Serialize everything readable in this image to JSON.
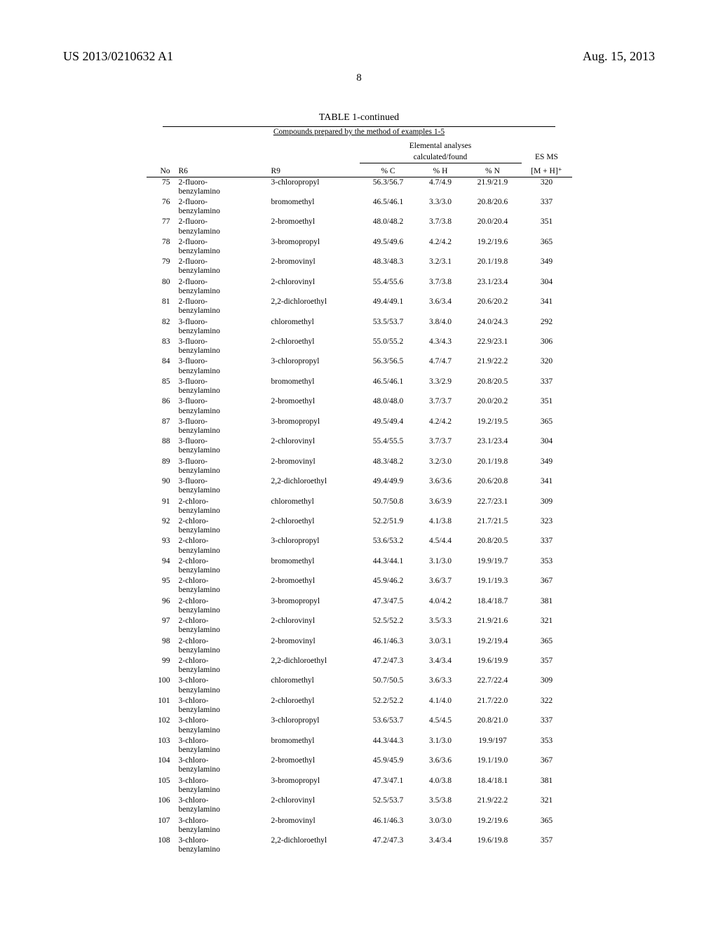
{
  "header": {
    "left": "US 2013/0210632 A1",
    "right": "Aug. 15, 2013"
  },
  "page_number": "8",
  "table": {
    "title": "TABLE 1-continued",
    "subtitle": "Compounds prepared by the method of examples 1-5",
    "group_header_elem": "Elemental analyses",
    "group_header_calc": "calculated/found",
    "group_header_ms": "ES MS",
    "columns": {
      "no": "No",
      "r6": "R6",
      "r9": "R9",
      "pc": "% C",
      "ph": "% H",
      "pn": "% N",
      "ms": "[M + H]⁺"
    },
    "rows": [
      {
        "no": "75",
        "r6": "2-fluoro-\nbenzylamino",
        "r9": "3-chloropropyl",
        "pc": "56.3/56.7",
        "ph": "4.7/4.9",
        "pn": "21.9/21.9",
        "ms": "320"
      },
      {
        "no": "76",
        "r6": "2-fluoro-\nbenzylamino",
        "r9": "bromomethyl",
        "pc": "46.5/46.1",
        "ph": "3.3/3.0",
        "pn": "20.8/20.6",
        "ms": "337"
      },
      {
        "no": "77",
        "r6": "2-fluoro-\nbenzylamino",
        "r9": "2-bromoethyl",
        "pc": "48.0/48.2",
        "ph": "3.7/3.8",
        "pn": "20.0/20.4",
        "ms": "351"
      },
      {
        "no": "78",
        "r6": "2-fluoro-\nbenzylamino",
        "r9": "3-bromopropyl",
        "pc": "49.5/49.6",
        "ph": "4.2/4.2",
        "pn": "19.2/19.6",
        "ms": "365"
      },
      {
        "no": "79",
        "r6": "2-fluoro-\nbenzylamino",
        "r9": "2-bromovinyl",
        "pc": "48.3/48.3",
        "ph": "3.2/3.1",
        "pn": "20.1/19.8",
        "ms": "349"
      },
      {
        "no": "80",
        "r6": "2-fluoro-\nbenzylamino",
        "r9": "2-chlorovinyl",
        "pc": "55.4/55.6",
        "ph": "3.7/3.8",
        "pn": "23.1/23.4",
        "ms": "304"
      },
      {
        "no": "81",
        "r6": "2-fluoro-\nbenzylamino",
        "r9": "2,2-dichloroethyl",
        "pc": "49.4/49.1",
        "ph": "3.6/3.4",
        "pn": "20.6/20.2",
        "ms": "341"
      },
      {
        "no": "82",
        "r6": "3-fluoro-\nbenzylamino",
        "r9": "chloromethyl",
        "pc": "53.5/53.7",
        "ph": "3.8/4.0",
        "pn": "24.0/24.3",
        "ms": "292"
      },
      {
        "no": "83",
        "r6": "3-fluoro-\nbenzylamino",
        "r9": "2-chloroethyl",
        "pc": "55.0/55.2",
        "ph": "4.3/4.3",
        "pn": "22.9/23.1",
        "ms": "306"
      },
      {
        "no": "84",
        "r6": "3-fluoro-\nbenzylamino",
        "r9": "3-chloropropyl",
        "pc": "56.3/56.5",
        "ph": "4.7/4.7",
        "pn": "21.9/22.2",
        "ms": "320"
      },
      {
        "no": "85",
        "r6": "3-fluoro-\nbenzylamino",
        "r9": "bromomethyl",
        "pc": "46.5/46.1",
        "ph": "3.3/2.9",
        "pn": "20.8/20.5",
        "ms": "337"
      },
      {
        "no": "86",
        "r6": "3-fluoro-\nbenzylamino",
        "r9": "2-bromoethyl",
        "pc": "48.0/48.0",
        "ph": "3.7/3.7",
        "pn": "20.0/20.2",
        "ms": "351"
      },
      {
        "no": "87",
        "r6": "3-fluoro-\nbenzylamino",
        "r9": "3-bromopropyl",
        "pc": "49.5/49.4",
        "ph": "4.2/4.2",
        "pn": "19.2/19.5",
        "ms": "365"
      },
      {
        "no": "88",
        "r6": "3-fluoro-\nbenzylamino",
        "r9": "2-chlorovinyl",
        "pc": "55.4/55.5",
        "ph": "3.7/3.7",
        "pn": "23.1/23.4",
        "ms": "304"
      },
      {
        "no": "89",
        "r6": "3-fluoro-\nbenzylamino",
        "r9": "2-bromovinyl",
        "pc": "48.3/48.2",
        "ph": "3.2/3.0",
        "pn": "20.1/19.8",
        "ms": "349"
      },
      {
        "no": "90",
        "r6": "3-fluoro-\nbenzylamino",
        "r9": "2,2-dichloroethyl",
        "pc": "49.4/49.9",
        "ph": "3.6/3.6",
        "pn": "20.6/20.8",
        "ms": "341"
      },
      {
        "no": "91",
        "r6": "2-chloro-\nbenzylamino",
        "r9": "chloromethyl",
        "pc": "50.7/50.8",
        "ph": "3.6/3.9",
        "pn": "22.7/23.1",
        "ms": "309"
      },
      {
        "no": "92",
        "r6": "2-chloro-\nbenzylamino",
        "r9": "2-chloroethyl",
        "pc": "52.2/51.9",
        "ph": "4.1/3.8",
        "pn": "21.7/21.5",
        "ms": "323"
      },
      {
        "no": "93",
        "r6": "2-chloro-\nbenzylamino",
        "r9": "3-chloropropyl",
        "pc": "53.6/53.2",
        "ph": "4.5/4.4",
        "pn": "20.8/20.5",
        "ms": "337"
      },
      {
        "no": "94",
        "r6": "2-chloro-\nbenzylamino",
        "r9": "bromomethyl",
        "pc": "44.3/44.1",
        "ph": "3.1/3.0",
        "pn": "19.9/19.7",
        "ms": "353"
      },
      {
        "no": "95",
        "r6": "2-chloro-\nbenzylamino",
        "r9": "2-bromoethyl",
        "pc": "45.9/46.2",
        "ph": "3.6/3.7",
        "pn": "19.1/19.3",
        "ms": "367"
      },
      {
        "no": "96",
        "r6": "2-chloro-\nbenzylamino",
        "r9": "3-bromopropyl",
        "pc": "47.3/47.5",
        "ph": "4.0/4.2",
        "pn": "18.4/18.7",
        "ms": "381"
      },
      {
        "no": "97",
        "r6": "2-chloro-\nbenzylamino",
        "r9": "2-chlorovinyl",
        "pc": "52.5/52.2",
        "ph": "3.5/3.3",
        "pn": "21.9/21.6",
        "ms": "321"
      },
      {
        "no": "98",
        "r6": "2-chloro-\nbenzylamino",
        "r9": "2-bromovinyl",
        "pc": "46.1/46.3",
        "ph": "3.0/3.1",
        "pn": "19.2/19.4",
        "ms": "365"
      },
      {
        "no": "99",
        "r6": "2-chloro-\nbenzylamino",
        "r9": "2,2-dichloroethyl",
        "pc": "47.2/47.3",
        "ph": "3.4/3.4",
        "pn": "19.6/19.9",
        "ms": "357"
      },
      {
        "no": "100",
        "r6": "3-chloro-\nbenzylamino",
        "r9": "chloromethyl",
        "pc": "50.7/50.5",
        "ph": "3.6/3.3",
        "pn": "22.7/22.4",
        "ms": "309"
      },
      {
        "no": "101",
        "r6": "3-chloro-\nbenzylamino",
        "r9": "2-chloroethyl",
        "pc": "52.2/52.2",
        "ph": "4.1/4.0",
        "pn": "21.7/22.0",
        "ms": "322"
      },
      {
        "no": "102",
        "r6": "3-chloro-\nbenzylamino",
        "r9": "3-chloropropyl",
        "pc": "53.6/53.7",
        "ph": "4.5/4.5",
        "pn": "20.8/21.0",
        "ms": "337"
      },
      {
        "no": "103",
        "r6": "3-chloro-\nbenzylamino",
        "r9": "bromomethyl",
        "pc": "44.3/44.3",
        "ph": "3.1/3.0",
        "pn": "19.9/197",
        "ms": "353"
      },
      {
        "no": "104",
        "r6": "3-chloro-\nbenzylamino",
        "r9": "2-bromoethyl",
        "pc": "45.9/45.9",
        "ph": "3.6/3.6",
        "pn": "19.1/19.0",
        "ms": "367"
      },
      {
        "no": "105",
        "r6": "3-chloro-\nbenzylamino",
        "r9": "3-bromopropyl",
        "pc": "47.3/47.1",
        "ph": "4.0/3.8",
        "pn": "18.4/18.1",
        "ms": "381"
      },
      {
        "no": "106",
        "r6": "3-chloro-\nbenzylamino",
        "r9": "2-chlorovinyl",
        "pc": "52.5/53.7",
        "ph": "3.5/3.8",
        "pn": "21.9/22.2",
        "ms": "321"
      },
      {
        "no": "107",
        "r6": "3-chloro-\nbenzylamino",
        "r9": "2-bromovinyl",
        "pc": "46.1/46.3",
        "ph": "3.0/3.0",
        "pn": "19.2/19.6",
        "ms": "365"
      },
      {
        "no": "108",
        "r6": "3-chloro-\nbenzylamino",
        "r9": "2,2-dichloroethyl",
        "pc": "47.2/47.3",
        "ph": "3.4/3.4",
        "pn": "19.6/19.8",
        "ms": "357"
      }
    ]
  }
}
